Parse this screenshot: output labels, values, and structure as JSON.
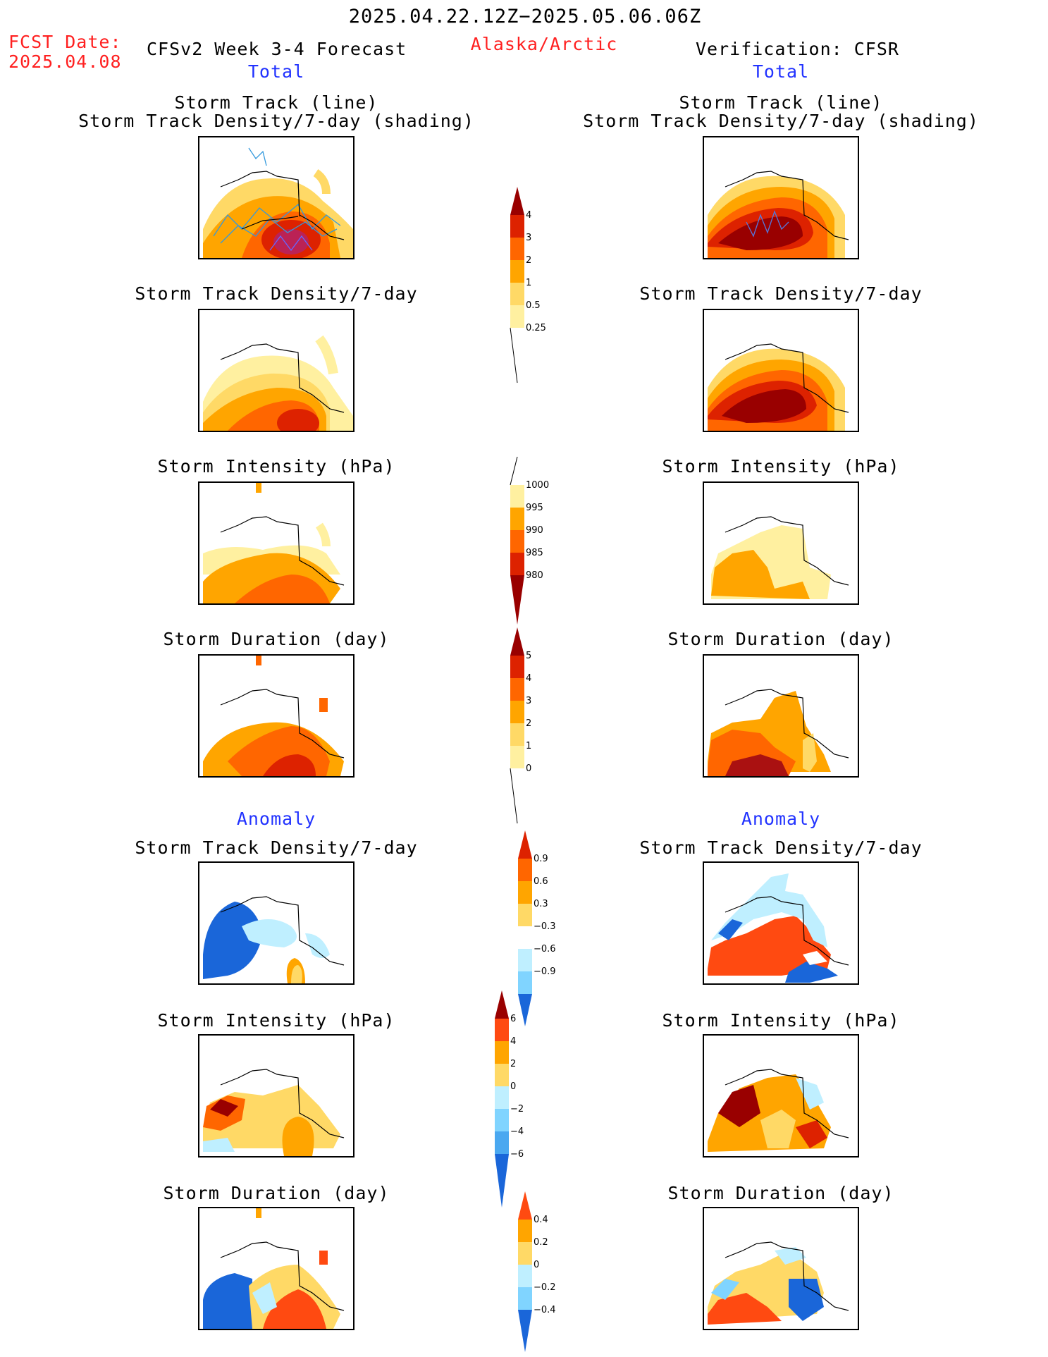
{
  "header": {
    "date_range": "2025.04.22.12Z−2025.05.06.06Z",
    "fcst_label": "FCST Date:",
    "fcst_date": "2025.04.08",
    "forecast_title": "CFSv2 Week 3-4 Forecast",
    "region": "Alaska/Arctic",
    "verification_title": "Verification: CFSR",
    "total_left": "Total",
    "total_right": "Total",
    "anomaly_left": "Anomaly",
    "anomaly_right": "Anomaly"
  },
  "panels": {
    "track_line": "Storm Track (line)",
    "track_shading": "Storm Track Density/7-day (shading)",
    "density": "Storm Track Density/7-day",
    "intensity": "Storm Intensity (hPa)",
    "duration": "Storm Duration (day)"
  },
  "colorbars": {
    "density_total": [
      "4",
      "3",
      "2",
      "1",
      "0.5",
      "0.25"
    ],
    "intensity_total": [
      "1000",
      "995",
      "990",
      "985",
      "980"
    ],
    "duration_total": [
      "5",
      "4",
      "3",
      "2",
      "1",
      "0"
    ],
    "density_anom": [
      "0.9",
      "0.6",
      "0.3",
      "−0.3",
      "−0.6",
      "−0.9"
    ],
    "intensity_anom": [
      "6",
      "4",
      "2",
      "0",
      "−2",
      "−4",
      "−6"
    ],
    "duration_anom": [
      "0.4",
      "0.2",
      "0",
      "−0.2",
      "−0.4"
    ]
  },
  "colors": {
    "title_red": "#ff2020",
    "label_blue": "#2233ff",
    "warm_scale": [
      "#fff8b0",
      "#ffd966",
      "#ffa500",
      "#ff6600",
      "#dd2200",
      "#990000"
    ],
    "cool_scale": [
      "#bfefff",
      "#80d4ff",
      "#4aa8f0",
      "#1a66d9"
    ]
  }
}
